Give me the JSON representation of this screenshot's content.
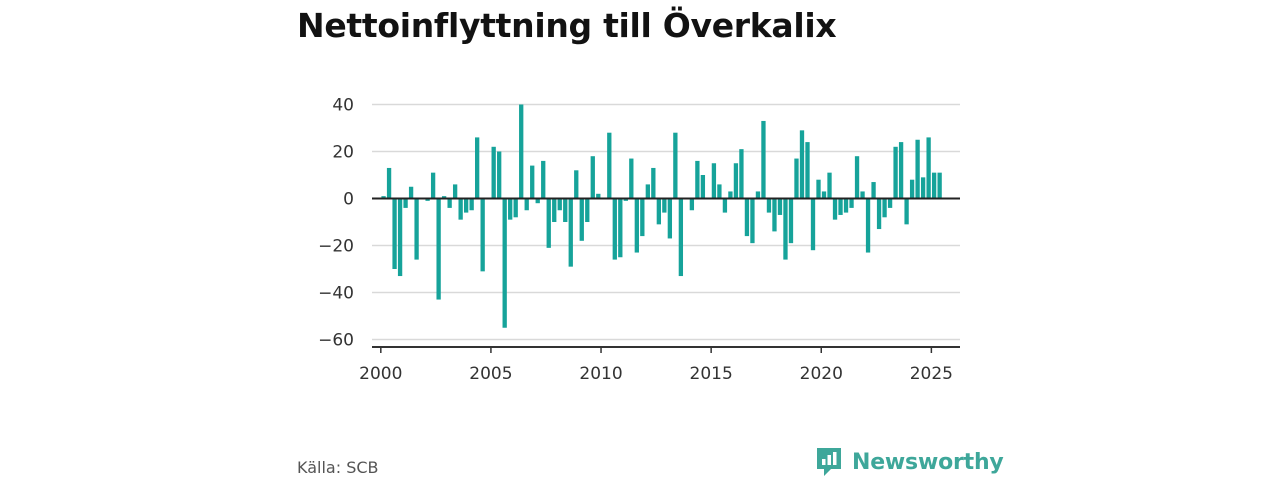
{
  "title": "Nettoinflyttning till Överkalix",
  "source": "Källa: SCB",
  "brand": {
    "name": "Newsworthy",
    "logo_icon": "newsworthy-logo-icon"
  },
  "colors": {
    "bar": "#16a39a",
    "axis": "#333333",
    "grid": "#d9d9d9",
    "brand": "#3ea79a"
  },
  "chart_data": {
    "type": "bar",
    "title": "Nettoinflyttning till Överkalix",
    "xlabel": "",
    "ylabel": "",
    "x_ticks": [
      "2000",
      "2005",
      "2010",
      "2015",
      "2020",
      "2025"
    ],
    "y_ticks": [
      40,
      20,
      0,
      -20,
      -40,
      -60
    ],
    "ylim": [
      -63,
      40
    ],
    "xlim": [
      1999.6,
      2026.3
    ],
    "grid": true,
    "legend": "none",
    "bar_period": "quarterly",
    "start": "2000 Q1",
    "values": [
      1,
      13,
      -30,
      -33,
      -4,
      5,
      -26,
      0,
      -1,
      11,
      -43,
      1,
      -4,
      6,
      -9,
      -6,
      -5,
      26,
      -31,
      0,
      22,
      20,
      -55,
      -9,
      -8,
      40,
      -5,
      14,
      -2,
      16,
      -21,
      -10,
      -5,
      -10,
      -29,
      12,
      -18,
      -10,
      18,
      2,
      0,
      28,
      -26,
      -25,
      -1,
      17,
      -23,
      -16,
      6,
      13,
      -11,
      -6,
      -17,
      28,
      -33,
      0,
      -5,
      16,
      10,
      0,
      15,
      6,
      -6,
      3,
      15,
      21,
      -16,
      -19,
      3,
      33,
      -6,
      -14,
      -7,
      -26,
      -19,
      17,
      29,
      24,
      -22,
      8,
      3,
      11,
      -9,
      -7,
      -6,
      -4,
      18,
      3,
      -23,
      7,
      -13,
      -8,
      -4,
      22,
      24,
      -11,
      8,
      25,
      9,
      26,
      11,
      11
    ]
  }
}
